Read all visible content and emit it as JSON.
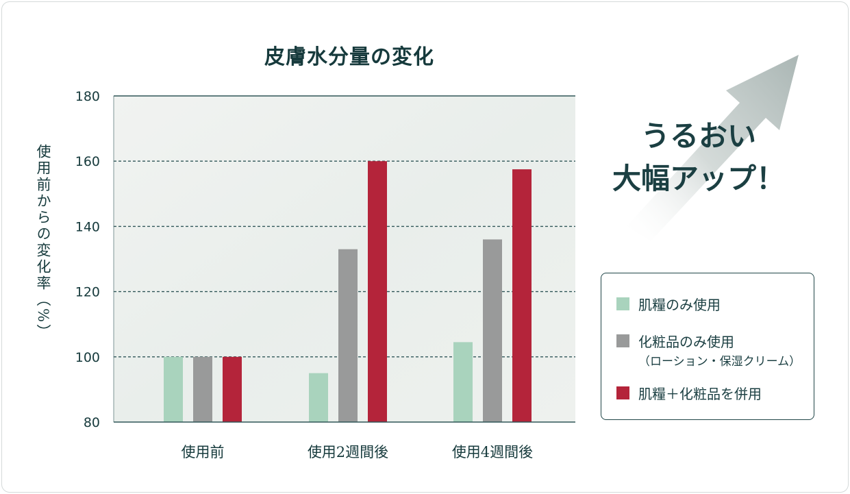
{
  "chart_data": {
    "type": "bar",
    "title": "皮膚水分量の変化",
    "ylabel": "使用前からの変化率（%）",
    "xlabel": "",
    "ylim": [
      80,
      180
    ],
    "yticks": [
      "80",
      "100",
      "120",
      "140",
      "160",
      "180"
    ],
    "grid": "dashed horizontal",
    "categories": [
      "使用前",
      "使用2週間後",
      "使用4週間後"
    ],
    "series": [
      {
        "name": "肌糧のみ使用",
        "values": [
          100,
          95,
          104.5
        ],
        "color": "#a9d3bd"
      },
      {
        "name": "化粧品のみ使用",
        "values": [
          100,
          133,
          136
        ],
        "color": "#999a9a"
      },
      {
        "name": "肌糧＋化粧品を併用",
        "values": [
          100,
          160,
          157.5
        ],
        "color": "#b4243a"
      }
    ],
    "legend_placement": "right"
  },
  "annotation": {
    "line1": "うるおい",
    "line2": "大幅アップ！",
    "arrow_icon": "up-right-arrow-icon"
  },
  "legend": {
    "items": [
      {
        "label": "肌糧のみ使用",
        "sub": ""
      },
      {
        "label": "化粧品のみ使用",
        "sub": "（ローション・保湿クリーム）"
      },
      {
        "label": "肌糧＋化粧品を併用",
        "sub": ""
      }
    ]
  },
  "colors": {
    "text": "#163a3c",
    "grid": "#2f5557",
    "plot_bg": "#eef1ef",
    "arrow": "#b9c3c1"
  }
}
